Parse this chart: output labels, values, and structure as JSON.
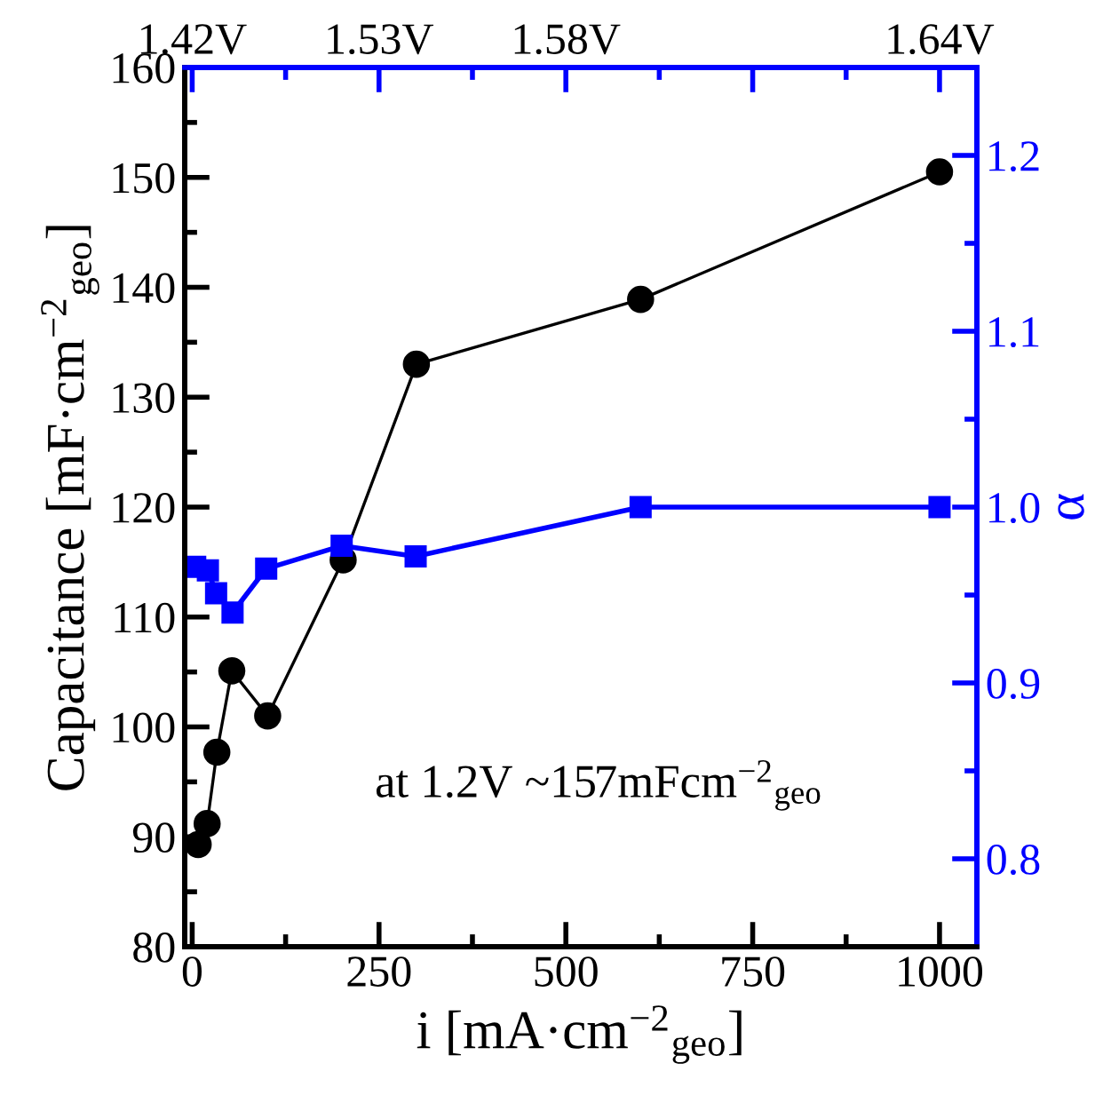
{
  "chart_data": {
    "type": "line",
    "xlabel": "i [mA·cm$^{−2}$$_{geo}$]",
    "ylabel": "Capacitance [mF·cm$^{−2}$$_{geo}$]",
    "y2label": "α",
    "x": [
      8,
      20,
      33,
      53,
      101,
      202,
      300,
      600,
      1000
    ],
    "series": [
      {
        "color": "#000000",
        "marker": "circle",
        "line_style": "solid",
        "values": [
          89.3,
          91.2,
          97.7,
          105.1,
          101.0,
          115.2,
          133.0,
          138.9,
          150.5
        ]
      },
      {
        "color": "#0000ff",
        "marker": "square",
        "line_style": "solid",
        "axis": "y2",
        "x": [
          4,
          21,
          32,
          54,
          99,
          200,
          299,
          600,
          1000
        ],
        "values": [
          0.966,
          0.964,
          0.951,
          0.94,
          0.965,
          0.978,
          0.972,
          1.0,
          1.0
        ]
      }
    ],
    "xlim": [
      -10,
      1050
    ],
    "xticks": [
      0,
      250,
      500,
      750,
      1000
    ],
    "ylim": [
      80,
      160
    ],
    "yticks": [
      80,
      90,
      100,
      110,
      120,
      130,
      140,
      150,
      160
    ],
    "y2lim": [
      0.75,
      1.25
    ],
    "y2ticks": [
      0.8,
      0.9,
      {
        "value": 1.0,
        "label": "1.0"
      },
      1.1,
      1.2
    ],
    "annotations": [
      "at 1.2V ~157mFcm$^{−2}$$_{geo}$",
      "1.42V",
      "1.53V",
      "1.58V",
      "1.64V"
    ],
    "grid": false,
    "legend": false
  }
}
